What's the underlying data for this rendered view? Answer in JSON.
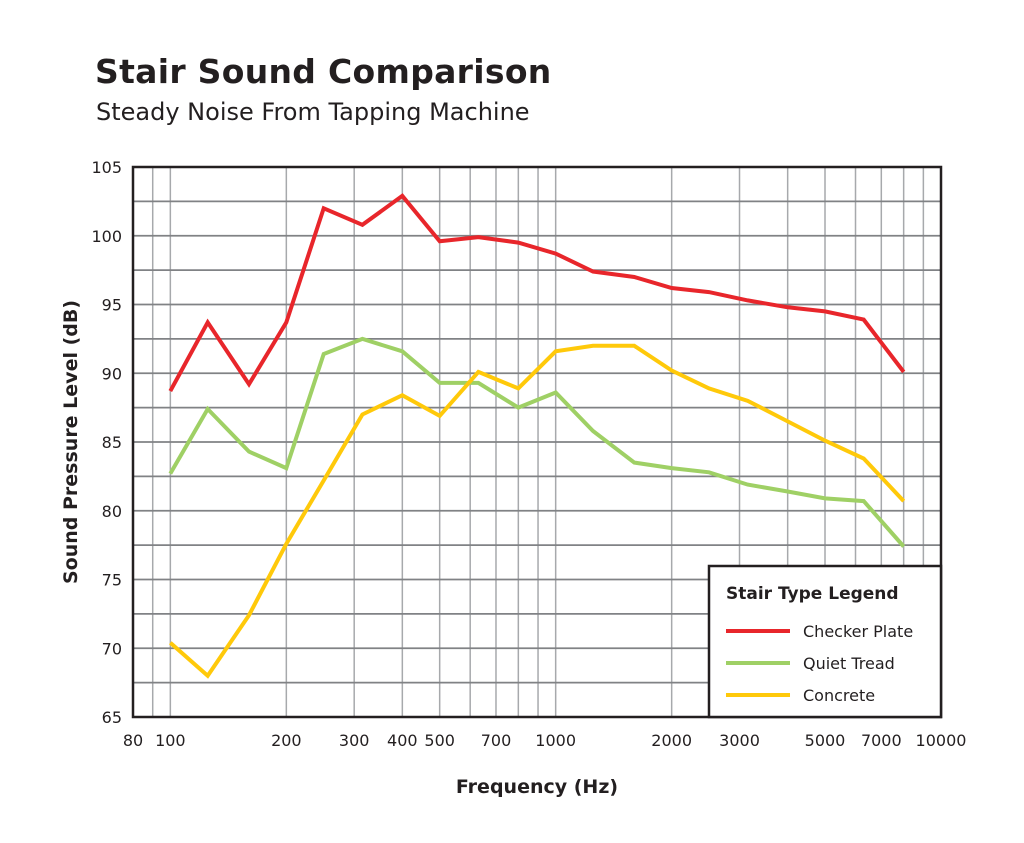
{
  "chart_data": {
    "type": "line",
    "title": "Stair Sound Comparison",
    "subtitle": "Steady Noise From Tapping Machine",
    "xlabel": "Frequency (Hz)",
    "ylabel": "Sound Pressure Level (dB)",
    "xscale": "log",
    "xlim": [
      80,
      10000
    ],
    "ylim": [
      65,
      105
    ],
    "xticks": [
      80,
      100,
      200,
      300,
      400,
      500,
      700,
      1000,
      2000,
      3000,
      5000,
      7000,
      10000
    ],
    "yticks": [
      65,
      70,
      75,
      80,
      85,
      90,
      95,
      100,
      105
    ],
    "grid": true,
    "legend": {
      "title": "Stair Type Legend",
      "placement": "bottom-right"
    },
    "x": [
      100,
      125,
      160,
      200,
      250,
      315,
      400,
      500,
      630,
      800,
      1000,
      1250,
      1600,
      2000,
      2500,
      3150,
      4000,
      5000,
      6300,
      8000
    ],
    "series": [
      {
        "name": "Checker Plate",
        "color": "#e8262b",
        "values": [
          88.7,
          93.7,
          89.2,
          93.7,
          102.0,
          100.8,
          102.9,
          99.6,
          99.9,
          99.5,
          98.7,
          97.4,
          97.0,
          96.2,
          95.9,
          95.3,
          94.8,
          94.5,
          93.9,
          90.1
        ]
      },
      {
        "name": "Quiet Tread",
        "color": "#9fd065",
        "values": [
          82.7,
          87.4,
          84.3,
          83.1,
          91.4,
          92.5,
          91.6,
          89.3,
          89.3,
          87.5,
          88.6,
          85.8,
          83.5,
          83.1,
          82.8,
          81.9,
          81.4,
          80.9,
          80.7,
          77.4
        ]
      },
      {
        "name": "Concrete",
        "color": "#ffc90a",
        "values": [
          70.4,
          68.0,
          72.4,
          77.6,
          82.2,
          87.0,
          88.4,
          86.9,
          90.1,
          88.9,
          91.6,
          92.0,
          92.0,
          90.2,
          88.9,
          88.0,
          86.5,
          85.1,
          83.8,
          80.7
        ]
      }
    ]
  }
}
